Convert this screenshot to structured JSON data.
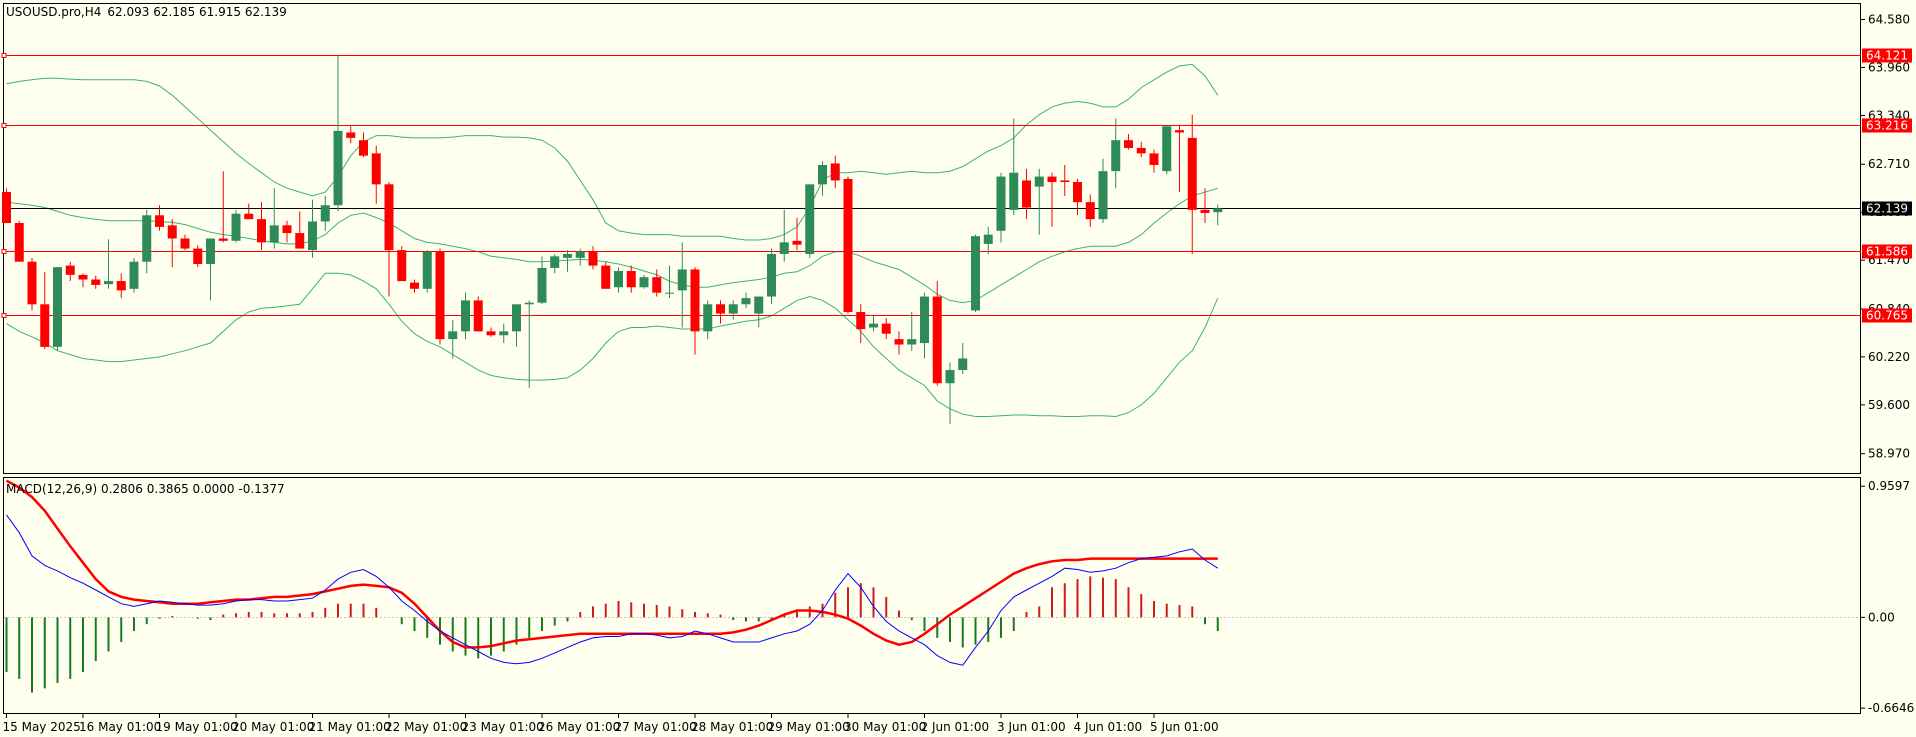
{
  "header": {
    "symbol": "USOUSD.pro,H4",
    "ohlc": "62.093 62.185 61.915 62.139"
  },
  "colors": {
    "background": "#fffff0",
    "bull": "#2e8b57",
    "bear": "#ff0000",
    "band": "#3cb371",
    "hline": "#ff0000",
    "current_price": "#000000",
    "macd_line": "#0000ff",
    "signal_line": "#ff0000",
    "hist_pos": "#d11a1a",
    "hist_neg": "#1a7a1a"
  },
  "chart_data": [
    {
      "type": "candlestick",
      "name": "price",
      "ylim": [
        58.72,
        64.78
      ],
      "y_ticks": [
        "64.580",
        "63.960",
        "63.340",
        "62.710",
        "62.090",
        "61.470",
        "60.840",
        "60.220",
        "59.600",
        "58.970"
      ],
      "x_labels": [
        "15 May 2025",
        "16 May 01:00",
        "19 May 01:00",
        "20 May 01:00",
        "21 May 01:00",
        "22 May 01:00",
        "23 May 01:00",
        "26 May 01:00",
        "27 May 01:00",
        "28 May 01:00",
        "29 May 01:00",
        "30 May 01:00",
        "2 Jun 01:00",
        "3 Jun 01:00",
        "4 Jun 01:00",
        "5 Jun 01:00"
      ],
      "current_price": {
        "value": 62.139,
        "label": "62.139"
      },
      "horizontal_lines": [
        {
          "value": 64.121,
          "label": "64.121"
        },
        {
          "value": 63.216,
          "label": "63.216"
        },
        {
          "value": 61.586,
          "label": "61.586"
        },
        {
          "value": 60.765,
          "label": "60.765"
        }
      ],
      "candles": [
        [
          62.35,
          62.4,
          61.95,
          61.95
        ],
        [
          61.95,
          61.98,
          61.45,
          61.45
        ],
        [
          61.45,
          61.5,
          60.82,
          60.9
        ],
        [
          60.9,
          61.32,
          60.32,
          60.35
        ],
        [
          60.35,
          61.38,
          60.3,
          61.38
        ],
        [
          61.4,
          61.45,
          61.2,
          61.28
        ],
        [
          61.28,
          61.3,
          61.12,
          61.22
        ],
        [
          61.22,
          61.27,
          61.1,
          61.15
        ],
        [
          61.16,
          61.74,
          61.1,
          61.2
        ],
        [
          61.2,
          61.3,
          60.98,
          61.08
        ],
        [
          61.1,
          61.5,
          61.05,
          61.45
        ],
        [
          61.45,
          62.12,
          61.3,
          62.05
        ],
        [
          62.05,
          62.18,
          61.85,
          61.9
        ],
        [
          61.92,
          62.0,
          61.38,
          61.75
        ],
        [
          61.75,
          61.8,
          61.6,
          61.62
        ],
        [
          61.62,
          61.66,
          61.38,
          61.42
        ],
        [
          61.42,
          61.7,
          60.95,
          61.75
        ],
        [
          61.75,
          62.62,
          61.7,
          61.72
        ],
        [
          61.72,
          62.12,
          61.7,
          62.07
        ],
        [
          62.07,
          62.2,
          62.0,
          62.0
        ],
        [
          62.0,
          62.22,
          61.6,
          61.7
        ],
        [
          61.7,
          62.4,
          61.62,
          61.92
        ],
        [
          61.92,
          61.98,
          61.7,
          61.82
        ],
        [
          61.82,
          62.1,
          61.62,
          61.62
        ],
        [
          61.6,
          62.25,
          61.5,
          61.97
        ],
        [
          61.97,
          62.3,
          61.85,
          62.18
        ],
        [
          62.18,
          64.12,
          62.1,
          63.14
        ],
        [
          63.12,
          63.2,
          62.98,
          63.05
        ],
        [
          63.02,
          63.12,
          62.8,
          62.82
        ],
        [
          62.85,
          62.95,
          62.2,
          62.45
        ],
        [
          62.45,
          62.48,
          61.0,
          61.6
        ],
        [
          61.6,
          61.65,
          61.2,
          61.2
        ],
        [
          61.18,
          61.22,
          61.05,
          61.1
        ],
        [
          61.1,
          61.6,
          61.05,
          61.58
        ],
        [
          61.58,
          61.62,
          60.38,
          60.45
        ],
        [
          60.45,
          60.7,
          60.2,
          60.55
        ],
        [
          60.55,
          61.05,
          60.45,
          60.95
        ],
        [
          60.95,
          61.0,
          60.55,
          60.55
        ],
        [
          60.55,
          60.6,
          60.48,
          60.5
        ],
        [
          60.5,
          60.65,
          60.4,
          60.55
        ],
        [
          60.55,
          60.9,
          60.35,
          60.9
        ],
        [
          60.9,
          60.95,
          59.82,
          60.92
        ],
        [
          60.92,
          61.52,
          60.9,
          61.37
        ],
        [
          61.37,
          61.55,
          61.3,
          61.52
        ],
        [
          61.5,
          61.6,
          61.32,
          61.55
        ],
        [
          61.5,
          61.62,
          61.4,
          61.58
        ],
        [
          61.58,
          61.65,
          61.35,
          61.4
        ],
        [
          61.4,
          61.45,
          61.1,
          61.1
        ],
        [
          61.12,
          61.38,
          61.05,
          61.33
        ],
        [
          61.33,
          61.4,
          61.05,
          61.12
        ],
        [
          61.12,
          61.28,
          61.1,
          61.25
        ],
        [
          61.25,
          61.35,
          61.0,
          61.05
        ],
        [
          61.05,
          61.4,
          60.98,
          61.05
        ],
        [
          61.08,
          61.7,
          60.6,
          61.35
        ],
        [
          61.35,
          61.38,
          60.25,
          60.55
        ],
        [
          60.55,
          60.95,
          60.45,
          60.9
        ],
        [
          60.9,
          60.95,
          60.65,
          60.78
        ],
        [
          60.78,
          60.95,
          60.7,
          60.9
        ],
        [
          60.9,
          61.05,
          60.85,
          60.98
        ],
        [
          60.78,
          61.0,
          60.6,
          61.0
        ],
        [
          61.0,
          61.62,
          60.9,
          61.55
        ],
        [
          61.55,
          62.12,
          61.45,
          61.7
        ],
        [
          61.72,
          62.02,
          61.6,
          61.67
        ],
        [
          61.55,
          62.45,
          61.5,
          62.45
        ],
        [
          62.45,
          62.75,
          62.3,
          62.7
        ],
        [
          62.72,
          62.82,
          62.4,
          62.5
        ],
        [
          62.52,
          62.55,
          60.78,
          60.8
        ],
        [
          60.8,
          60.9,
          60.4,
          60.58
        ],
        [
          60.6,
          60.75,
          60.55,
          60.65
        ],
        [
          60.65,
          60.72,
          60.45,
          60.52
        ],
        [
          60.45,
          60.55,
          60.25,
          60.38
        ],
        [
          60.38,
          60.8,
          60.3,
          60.45
        ],
        [
          60.4,
          61.05,
          60.2,
          61.0
        ],
        [
          61.0,
          61.2,
          59.85,
          59.88
        ],
        [
          59.88,
          60.15,
          59.35,
          60.05
        ],
        [
          60.05,
          60.4,
          60.0,
          60.2
        ],
        [
          60.82,
          61.8,
          60.8,
          61.78
        ],
        [
          61.68,
          61.9,
          61.55,
          61.8
        ],
        [
          61.85,
          62.6,
          61.7,
          62.55
        ],
        [
          62.12,
          63.3,
          62.05,
          62.6
        ],
        [
          62.5,
          62.65,
          62.0,
          62.15
        ],
        [
          62.42,
          62.65,
          61.8,
          62.55
        ],
        [
          62.55,
          62.6,
          61.9,
          62.48
        ],
        [
          62.5,
          62.7,
          62.3,
          62.48
        ],
        [
          62.48,
          62.52,
          62.05,
          62.22
        ],
        [
          62.22,
          62.32,
          61.9,
          62.0
        ],
        [
          62.0,
          62.78,
          61.95,
          62.62
        ],
        [
          62.62,
          63.3,
          62.4,
          63.02
        ],
        [
          63.02,
          63.1,
          62.9,
          62.92
        ],
        [
          62.92,
          63.0,
          62.8,
          62.85
        ],
        [
          62.85,
          62.9,
          62.6,
          62.7
        ],
        [
          62.62,
          63.2,
          62.58,
          63.2
        ],
        [
          63.15,
          63.22,
          62.35,
          63.12
        ],
        [
          63.05,
          63.35,
          61.55,
          62.12
        ],
        [
          62.12,
          62.4,
          61.95,
          62.08
        ],
        [
          62.09,
          62.19,
          61.92,
          62.14
        ]
      ],
      "bands": {
        "upper": [
          63.75,
          63.78,
          63.8,
          63.82,
          63.82,
          63.81,
          63.8,
          63.8,
          63.8,
          63.8,
          63.8,
          63.78,
          63.72,
          63.6,
          63.45,
          63.3,
          63.15,
          63.0,
          62.85,
          62.72,
          62.6,
          62.48,
          62.4,
          62.35,
          62.3,
          62.35,
          62.55,
          62.82,
          63.0,
          63.08,
          63.08,
          63.06,
          63.05,
          63.05,
          63.05,
          63.06,
          63.08,
          63.08,
          63.08,
          63.06,
          63.06,
          63.05,
          63.02,
          62.92,
          62.75,
          62.5,
          62.25,
          61.95,
          61.85,
          61.82,
          61.8,
          61.8,
          61.8,
          61.78,
          61.78,
          61.78,
          61.78,
          61.75,
          61.73,
          61.73,
          61.75,
          61.8,
          61.9,
          62.15,
          62.5,
          62.6,
          62.6,
          62.62,
          62.6,
          62.58,
          62.6,
          62.62,
          62.6,
          62.6,
          62.62,
          62.68,
          62.78,
          62.88,
          62.95,
          63.05,
          63.22,
          63.35,
          63.45,
          63.5,
          63.52,
          63.5,
          63.45,
          63.45,
          63.55,
          63.7,
          63.8,
          63.9,
          63.98,
          64.0,
          63.85,
          63.6
        ],
        "middle": [
          62.22,
          62.2,
          62.18,
          62.15,
          62.1,
          62.05,
          62.02,
          62.0,
          61.98,
          61.98,
          61.98,
          61.98,
          61.97,
          61.96,
          61.93,
          61.88,
          61.83,
          61.8,
          61.78,
          61.75,
          61.72,
          61.7,
          61.68,
          61.68,
          61.72,
          61.8,
          61.95,
          62.05,
          62.08,
          62.02,
          61.95,
          61.85,
          61.75,
          61.7,
          61.68,
          61.65,
          61.62,
          61.58,
          61.52,
          61.5,
          61.48,
          61.45,
          61.45,
          61.46,
          61.47,
          61.48,
          61.47,
          61.45,
          61.42,
          61.38,
          61.33,
          61.28,
          61.2,
          61.15,
          61.12,
          61.12,
          61.15,
          61.18,
          61.2,
          61.22,
          61.25,
          61.3,
          61.32,
          61.4,
          61.52,
          61.58,
          61.58,
          61.52,
          61.45,
          61.4,
          61.35,
          61.25,
          61.15,
          61.03,
          60.95,
          60.92,
          60.95,
          61.05,
          61.15,
          61.25,
          61.35,
          61.45,
          61.52,
          61.58,
          61.62,
          61.65,
          61.65,
          61.65,
          61.7,
          61.8,
          61.95,
          62.08,
          62.2,
          62.3,
          62.35,
          62.4
        ],
        "lower": [
          60.65,
          60.55,
          60.48,
          60.4,
          60.3,
          60.25,
          60.2,
          60.18,
          60.16,
          60.16,
          60.18,
          60.2,
          60.22,
          60.26,
          60.3,
          60.35,
          60.4,
          60.55,
          60.7,
          60.8,
          60.85,
          60.86,
          60.88,
          60.9,
          61.1,
          61.3,
          61.3,
          61.28,
          61.2,
          61.1,
          60.9,
          60.68,
          60.52,
          60.42,
          60.35,
          60.25,
          60.15,
          60.05,
          59.98,
          59.95,
          59.93,
          59.92,
          59.92,
          59.93,
          59.95,
          60.05,
          60.2,
          60.4,
          60.55,
          60.6,
          60.6,
          60.62,
          60.6,
          60.58,
          60.58,
          60.58,
          60.62,
          60.65,
          60.68,
          60.7,
          60.75,
          60.85,
          60.95,
          61.0,
          60.95,
          60.85,
          60.7,
          60.55,
          60.35,
          60.2,
          60.05,
          59.95,
          59.85,
          59.65,
          59.55,
          59.48,
          59.45,
          59.45,
          59.46,
          59.47,
          59.47,
          59.46,
          59.46,
          59.45,
          59.45,
          59.46,
          59.46,
          59.45,
          59.5,
          59.6,
          59.75,
          59.95,
          60.15,
          60.3,
          60.6,
          60.98
        ]
      }
    },
    {
      "type": "macd",
      "name": "MACD",
      "label": "MACD(12,26,9) 0.2806 0.3865 0.0000 -0.1377",
      "ylim": [
        -0.7,
        1.02
      ],
      "y_ticks": [
        "0.9597",
        "0.00",
        "-0.6646"
      ],
      "macd": [
        0.75,
        0.62,
        0.45,
        0.38,
        0.34,
        0.29,
        0.25,
        0.2,
        0.15,
        0.1,
        0.08,
        0.1,
        0.12,
        0.11,
        0.1,
        0.09,
        0.09,
        0.1,
        0.12,
        0.13,
        0.13,
        0.12,
        0.12,
        0.13,
        0.14,
        0.2,
        0.28,
        0.33,
        0.35,
        0.3,
        0.22,
        0.12,
        0.05,
        -0.03,
        -0.1,
        -0.15,
        -0.2,
        -0.25,
        -0.3,
        -0.33,
        -0.34,
        -0.33,
        -0.3,
        -0.26,
        -0.22,
        -0.18,
        -0.15,
        -0.14,
        -0.14,
        -0.12,
        -0.12,
        -0.13,
        -0.15,
        -0.14,
        -0.1,
        -0.12,
        -0.15,
        -0.18,
        -0.18,
        -0.18,
        -0.15,
        -0.12,
        -0.1,
        -0.05,
        0.05,
        0.2,
        0.32,
        0.22,
        0.08,
        -0.03,
        -0.1,
        -0.15,
        -0.2,
        -0.28,
        -0.33,
        -0.35,
        -0.22,
        -0.1,
        0.05,
        0.15,
        0.2,
        0.25,
        0.3,
        0.36,
        0.35,
        0.33,
        0.34,
        0.36,
        0.4,
        0.43,
        0.44,
        0.45,
        0.48,
        0.5,
        0.42,
        0.36
      ],
      "signal": [
        1.0,
        0.95,
        0.88,
        0.78,
        0.65,
        0.52,
        0.4,
        0.28,
        0.19,
        0.15,
        0.13,
        0.12,
        0.11,
        0.1,
        0.1,
        0.1,
        0.11,
        0.12,
        0.13,
        0.13,
        0.14,
        0.15,
        0.15,
        0.16,
        0.17,
        0.19,
        0.21,
        0.23,
        0.24,
        0.23,
        0.22,
        0.18,
        0.1,
        0.0,
        -0.1,
        -0.18,
        -0.22,
        -0.22,
        -0.21,
        -0.19,
        -0.17,
        -0.16,
        -0.15,
        -0.14,
        -0.13,
        -0.12,
        -0.12,
        -0.12,
        -0.12,
        -0.12,
        -0.12,
        -0.12,
        -0.12,
        -0.12,
        -0.12,
        -0.12,
        -0.12,
        -0.11,
        -0.09,
        -0.06,
        -0.02,
        0.02,
        0.05,
        0.05,
        0.04,
        0.02,
        -0.01,
        -0.06,
        -0.12,
        -0.17,
        -0.2,
        -0.18,
        -0.12,
        -0.05,
        0.02,
        0.08,
        0.14,
        0.2,
        0.26,
        0.32,
        0.36,
        0.39,
        0.41,
        0.42,
        0.42,
        0.43,
        0.43,
        0.43,
        0.43,
        0.43,
        0.43,
        0.43,
        0.43,
        0.43,
        0.43,
        0.43
      ],
      "histogram": [
        -0.4,
        -0.45,
        -0.55,
        -0.52,
        -0.48,
        -0.45,
        -0.4,
        -0.32,
        -0.25,
        -0.18,
        -0.1,
        -0.05,
        -0.01,
        0.01,
        0.0,
        -0.01,
        -0.02,
        0.02,
        0.03,
        0.04,
        0.04,
        0.03,
        0.03,
        0.03,
        0.04,
        0.07,
        0.1,
        0.1,
        0.1,
        0.07,
        0.0,
        -0.05,
        -0.1,
        -0.15,
        -0.2,
        -0.25,
        -0.28,
        -0.3,
        -0.28,
        -0.25,
        -0.2,
        -0.15,
        -0.1,
        -0.06,
        -0.03,
        0.04,
        0.08,
        0.1,
        0.12,
        0.11,
        0.1,
        0.09,
        0.08,
        0.06,
        0.04,
        0.03,
        0.02,
        -0.02,
        -0.03,
        -0.03,
        -0.02,
        0.02,
        0.04,
        0.08,
        0.1,
        0.18,
        0.22,
        0.25,
        0.22,
        0.15,
        0.05,
        -0.02,
        -0.1,
        -0.15,
        -0.18,
        -0.22,
        -0.2,
        -0.18,
        -0.15,
        -0.1,
        0.04,
        0.08,
        0.22,
        0.25,
        0.28,
        0.3,
        0.29,
        0.28,
        0.22,
        0.17,
        0.12,
        0.1,
        0.09,
        0.08,
        -0.05,
        -0.1
      ]
    }
  ]
}
